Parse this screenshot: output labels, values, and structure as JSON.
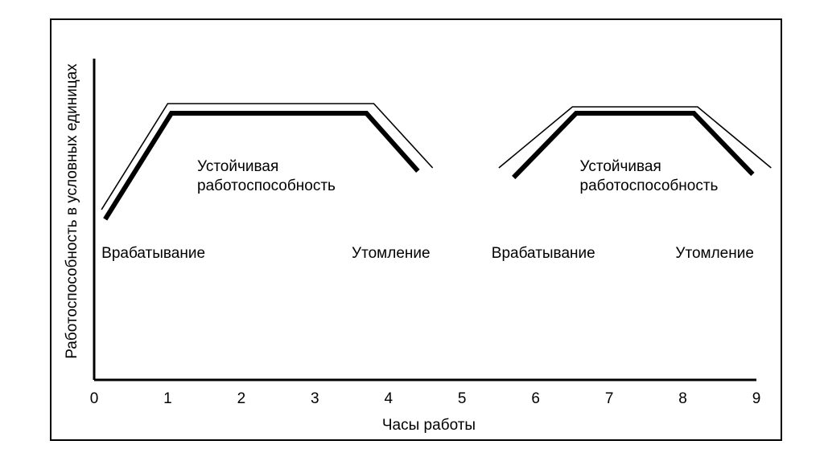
{
  "chart_data": {
    "type": "line",
    "ylabel": "Работоспособность в условных единицах",
    "xlabel": "Часы работы",
    "x_ticks": [
      "0",
      "1",
      "2",
      "3",
      "4",
      "5",
      "6",
      "7",
      "8",
      "9"
    ],
    "xlim": [
      0,
      9
    ],
    "ylim": [
      0,
      10
    ],
    "grid": false,
    "series": [
      {
        "x": [
          0.15,
          1.05,
          3.7,
          4.4
        ],
        "y": [
          5.0,
          8.3,
          8.3,
          6.5
        ]
      },
      {
        "x": [
          5.7,
          6.55,
          8.15,
          8.95
        ],
        "y": [
          6.3,
          8.3,
          8.3,
          6.4
        ]
      }
    ],
    "shadow_series": [
      {
        "x": [
          0.1,
          1.0,
          3.8,
          4.6
        ],
        "y": [
          5.3,
          8.6,
          8.6,
          6.6
        ]
      },
      {
        "x": [
          5.5,
          6.5,
          8.2,
          9.2
        ],
        "y": [
          6.6,
          8.5,
          8.5,
          6.6
        ]
      }
    ],
    "annotations": [
      {
        "text": "Врабатывание",
        "x": 0.1,
        "y": 3.8
      },
      {
        "text": "Устойчивая",
        "x": 1.4,
        "y": 6.5
      },
      {
        "text": "работоспособность",
        "x": 1.4,
        "y": 5.9
      },
      {
        "text": "Утомление",
        "x": 3.5,
        "y": 3.8
      },
      {
        "text": "Врабатывание",
        "x": 5.4,
        "y": 3.8
      },
      {
        "text": "Устойчивая",
        "x": 6.6,
        "y": 6.5
      },
      {
        "text": "работоспособность",
        "x": 6.6,
        "y": 5.9
      },
      {
        "text": "Утомление",
        "x": 7.9,
        "y": 3.8
      }
    ]
  }
}
